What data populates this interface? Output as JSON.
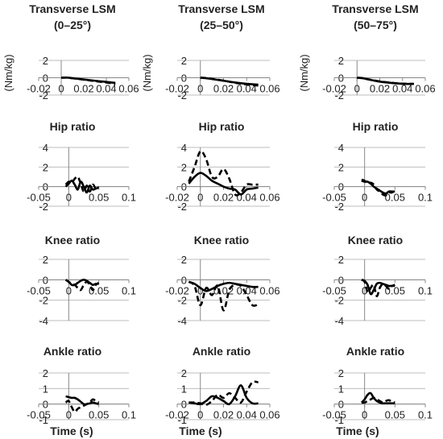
{
  "chart_data": [
    {
      "type": "line",
      "title": [
        "Transverse LSM",
        "(0–25°)"
      ],
      "ylabel": "(Nm/kg)",
      "xlim": [
        -0.02,
        0.06
      ],
      "ylim": [
        -2,
        2
      ],
      "xticks": [
        -0.02,
        0,
        0.02,
        0.04,
        0.06
      ],
      "yticks": [
        -2,
        0,
        2
      ],
      "xticklabels": [
        "-0.02",
        "0",
        "0.02",
        "0.04",
        "0.06"
      ],
      "yticklabels": [
        "-2",
        "0",
        "2"
      ],
      "series": [
        {
          "x": [
            0,
            0.005,
            0.01,
            0.02,
            0.03,
            0.04,
            0.048
          ],
          "values": [
            0,
            0.02,
            -0.05,
            -0.2,
            -0.35,
            -0.48,
            -0.6
          ],
          "style": "solid"
        },
        {
          "x": [
            0,
            0.005,
            0.01,
            0.02,
            0.03,
            0.04,
            0.048
          ],
          "values": [
            0,
            0.02,
            -0.06,
            -0.22,
            -0.4,
            -0.55,
            -0.72
          ],
          "style": "dashed"
        }
      ]
    },
    {
      "type": "line",
      "title": [
        "Transverse LSM",
        "(25–50°)"
      ],
      "ylabel": "(Nm/kg)",
      "xlim": [
        -0.02,
        0.06
      ],
      "ylim": [
        -2,
        2
      ],
      "xticks": [
        -0.02,
        0,
        0.02,
        0.04,
        0.06
      ],
      "yticks": [
        -2,
        0,
        2
      ],
      "xticklabels": [
        "-0.02",
        "0",
        "0.02",
        "0.04",
        "0.06"
      ],
      "yticklabels": [
        "-2",
        "0",
        "2"
      ],
      "series": [
        {
          "x": [
            0,
            0.005,
            0.01,
            0.02,
            0.03,
            0.04,
            0.05
          ],
          "values": [
            0,
            -0.05,
            -0.15,
            -0.35,
            -0.55,
            -0.7,
            -0.8
          ],
          "style": "solid"
        },
        {
          "x": [
            0,
            0.005,
            0.01,
            0.02,
            0.03,
            0.04,
            0.05
          ],
          "values": [
            0,
            -0.03,
            -0.12,
            -0.33,
            -0.58,
            -0.78,
            -0.9
          ],
          "style": "dashed"
        }
      ]
    },
    {
      "type": "line",
      "title": [
        "Transverse LSM",
        "(50–75°)"
      ],
      "ylabel": "(Nm/kg)",
      "xlim": [
        -0.02,
        0.06
      ],
      "ylim": [
        -2,
        2
      ],
      "xticks": [
        -0.02,
        0,
        0.02,
        0.04,
        0.06
      ],
      "yticks": [
        -2,
        0,
        2
      ],
      "xticklabels": [
        "-0.02",
        "0",
        "0.02",
        "0.04",
        "0.06"
      ],
      "yticklabels": [
        "-2",
        "0",
        "2"
      ],
      "series": [
        {
          "x": [
            0,
            0.005,
            0.01,
            0.02,
            0.03,
            0.04,
            0.05
          ],
          "values": [
            0,
            -0.05,
            -0.2,
            -0.45,
            -0.6,
            -0.7,
            -0.72
          ],
          "style": "solid"
        },
        {
          "x": [
            0,
            0.005,
            0.01,
            0.02,
            0.03,
            0.04,
            0.05
          ],
          "values": [
            0,
            -0.04,
            -0.18,
            -0.42,
            -0.58,
            -0.68,
            -0.7
          ],
          "style": "dashed"
        }
      ]
    },
    {
      "type": "line",
      "title": [
        "Hip ratio"
      ],
      "xlim": [
        -0.05,
        0.1
      ],
      "ylim": [
        -2,
        4
      ],
      "xticks": [
        -0.05,
        0,
        0.05,
        0.1
      ],
      "yticks": [
        -2,
        0,
        2,
        4
      ],
      "xticklabels": [
        "-0.05",
        "0",
        "0.05",
        "0.1"
      ],
      "yticklabels": [
        "-2",
        "0",
        "2",
        "4"
      ],
      "series": [
        {
          "x": [
            -0.005,
            0,
            0.005,
            0.01,
            0.015,
            0.02,
            0.025,
            0.03,
            0.035,
            0.04,
            0.045,
            0.05
          ],
          "values": [
            0,
            0.3,
            0.6,
            0.2,
            -0.3,
            0.5,
            0,
            -0.6,
            0.1,
            -0.3,
            -0.2,
            -0.1
          ],
          "style": "solid"
        },
        {
          "x": [
            -0.005,
            0,
            0.005,
            0.01,
            0.015,
            0.02,
            0.025,
            0.03,
            0.035,
            0.04,
            0.045,
            0.05
          ],
          "values": [
            0.2,
            0.5,
            0.4,
            0.8,
            1.0,
            0.3,
            -0.5,
            0.1,
            -0.5,
            0.2,
            -0.2,
            0
          ],
          "style": "dashed"
        }
      ]
    },
    {
      "type": "line",
      "title": [
        "Hip ratio"
      ],
      "xlim": [
        -0.02,
        0.06
      ],
      "ylim": [
        -2,
        4
      ],
      "xticks": [
        -0.02,
        0,
        0.02,
        0.04,
        0.06
      ],
      "yticks": [
        -2,
        0,
        2,
        4
      ],
      "xticklabels": [
        "-0.02",
        "0",
        "0.02",
        "0.04",
        "0.06"
      ],
      "yticklabels": [
        "-2",
        "0",
        "2",
        "4"
      ],
      "series": [
        {
          "x": [
            -0.01,
            -0.005,
            0,
            0.005,
            0.01,
            0.015,
            0.02,
            0.025,
            0.03,
            0.035,
            0.04,
            0.045,
            0.05
          ],
          "values": [
            0.3,
            1.0,
            1.4,
            1.1,
            0.6,
            0.3,
            0.0,
            -0.2,
            -0.3,
            -0.8,
            -0.3,
            -0.2,
            -0.1
          ],
          "style": "solid"
        },
        {
          "x": [
            -0.01,
            -0.005,
            0,
            0.005,
            0.01,
            0.015,
            0.02,
            0.025,
            0.03,
            0.035,
            0.04,
            0.045,
            0.05
          ],
          "values": [
            0.5,
            2.0,
            3.6,
            2.8,
            1.0,
            1.0,
            1.8,
            0.8,
            -0.8,
            -0.6,
            0.2,
            0.2,
            0.2
          ],
          "style": "dashed"
        }
      ]
    },
    {
      "type": "line",
      "title": [
        "Hip ratio"
      ],
      "xlim": [
        -0.05,
        0.1
      ],
      "ylim": [
        -2,
        4
      ],
      "xticks": [
        -0.05,
        0,
        0.05,
        0.1
      ],
      "yticks": [
        -2,
        0,
        2,
        4
      ],
      "xticklabels": [
        "-0.05",
        "0",
        "0.05",
        "0.1"
      ],
      "yticklabels": [
        "-2",
        "0",
        "2",
        "4"
      ],
      "series": [
        {
          "x": [
            -0.005,
            0,
            0.005,
            0.01,
            0.015,
            0.02,
            0.025,
            0.03,
            0.035,
            0.04,
            0.045,
            0.05
          ],
          "values": [
            0.6,
            0.5,
            0.5,
            0.3,
            0,
            -0.2,
            -0.4,
            -0.6,
            -0.7,
            -0.5,
            -0.5,
            -0.5
          ],
          "style": "solid"
        },
        {
          "x": [
            -0.005,
            0,
            0.005,
            0.01,
            0.015,
            0.02,
            0.025,
            0.03,
            0.035,
            0.04,
            0.045,
            0.05
          ],
          "values": [
            0.7,
            0.6,
            0.3,
            0.4,
            0.2,
            -0.3,
            -0.5,
            -0.8,
            -0.9,
            -0.6,
            -0.6,
            -0.4
          ],
          "style": "dashed"
        }
      ]
    },
    {
      "type": "line",
      "title": [
        "Knee ratio"
      ],
      "xlim": [
        -0.05,
        0.1
      ],
      "ylim": [
        -4,
        2
      ],
      "xticks": [
        -0.05,
        0,
        0.05,
        0.1
      ],
      "yticks": [
        -4,
        -2,
        0,
        2
      ],
      "xticklabels": [
        "-0.05",
        "0",
        "0.05",
        "0.1"
      ],
      "yticklabels": [
        "-4",
        "-2",
        "0",
        "2"
      ],
      "series": [
        {
          "x": [
            -0.005,
            0,
            0.005,
            0.01,
            0.015,
            0.02,
            0.025,
            0.03,
            0.035,
            0.04,
            0.045,
            0.05
          ],
          "values": [
            0,
            -0.2,
            -0.5,
            -0.5,
            -0.3,
            -0.1,
            0,
            -0.1,
            -0.3,
            -0.5,
            -0.4,
            -0.4
          ],
          "style": "solid"
        },
        {
          "x": [
            -0.005,
            0,
            0.005,
            0.01,
            0.015,
            0.02,
            0.025,
            0.03,
            0.035,
            0.04,
            0.045,
            0.05
          ],
          "values": [
            0,
            -0.2,
            -0.4,
            -0.5,
            -0.8,
            -1.0,
            -0.5,
            -0.2,
            -0.5,
            -1.0,
            -0.5,
            -0.3
          ],
          "style": "dashed"
        }
      ]
    },
    {
      "type": "line",
      "title": [
        "Knee ratio"
      ],
      "xlim": [
        -0.02,
        0.06
      ],
      "ylim": [
        -4,
        2
      ],
      "xticks": [
        -0.02,
        0,
        0.02,
        0.04,
        0.06
      ],
      "yticks": [
        -4,
        -2,
        0,
        2
      ],
      "xticklabels": [
        "-0.02",
        "0",
        "0.02",
        "0.04",
        "0.06"
      ],
      "yticklabels": [
        "-4",
        "-2",
        "0",
        "2"
      ],
      "series": [
        {
          "x": [
            -0.01,
            -0.005,
            0,
            0.005,
            0.01,
            0.015,
            0.02,
            0.025,
            0.03,
            0.035,
            0.04,
            0.045,
            0.05
          ],
          "values": [
            -0.2,
            -0.4,
            -0.8,
            -1.1,
            -0.9,
            -0.6,
            -0.4,
            -0.3,
            -0.4,
            -0.5,
            -0.6,
            -0.7,
            -0.7
          ],
          "style": "solid"
        },
        {
          "x": [
            -0.01,
            -0.005,
            0,
            0.005,
            0.01,
            0.015,
            0.02,
            0.025,
            0.03,
            0.035,
            0.04,
            0.045,
            0.05
          ],
          "values": [
            -0.2,
            -0.6,
            -2.5,
            -0.8,
            -1.5,
            -0.6,
            -3.0,
            -1.0,
            -0.5,
            -0.6,
            -1.5,
            -2.5,
            -2.4
          ],
          "style": "dashed"
        }
      ]
    },
    {
      "type": "line",
      "title": [
        "Knee ratio"
      ],
      "xlim": [
        -0.05,
        0.1
      ],
      "ylim": [
        -4,
        2
      ],
      "xticks": [
        -0.05,
        0,
        0.05,
        0.1
      ],
      "yticks": [
        -4,
        -2,
        0,
        2
      ],
      "xticklabels": [
        "-0.05",
        "0",
        "0.05",
        "0.1"
      ],
      "yticklabels": [
        "-4",
        "-2",
        "0",
        "2"
      ],
      "series": [
        {
          "x": [
            -0.005,
            0,
            0.005,
            0.01,
            0.015,
            0.02,
            0.025,
            0.03,
            0.035,
            0.04,
            0.045,
            0.05
          ],
          "values": [
            0,
            -0.1,
            -0.5,
            -1.4,
            -1.0,
            -0.4,
            -0.3,
            -0.4,
            -0.5,
            -0.6,
            -0.6,
            -0.6
          ],
          "style": "solid"
        },
        {
          "x": [
            -0.005,
            0,
            0.005,
            0.01,
            0.015,
            0.02,
            0.025,
            0.03,
            0.035,
            0.04,
            0.045,
            0.05
          ],
          "values": [
            0,
            -0.2,
            -1.2,
            -0.8,
            -0.5,
            -1.6,
            -0.8,
            -0.4,
            -0.6,
            -0.9,
            -0.6,
            -0.5
          ],
          "style": "dashed"
        }
      ]
    },
    {
      "type": "line",
      "title": [
        "Ankle ratio"
      ],
      "xlim": [
        -0.05,
        0.1
      ],
      "ylim": [
        -1,
        2
      ],
      "xticks": [
        -0.05,
        0,
        0.05,
        0.1
      ],
      "yticks": [
        -1,
        0,
        1,
        2
      ],
      "xticklabels": [
        "-0.05",
        "0",
        "0.05",
        "0.1"
      ],
      "yticklabels": [
        "-1",
        "0",
        "1",
        "2"
      ],
      "series": [
        {
          "x": [
            -0.005,
            0,
            0.005,
            0.01,
            0.015,
            0.02,
            0.025,
            0.03,
            0.035,
            0.04,
            0.045,
            0.05
          ],
          "values": [
            0.5,
            0.45,
            0.4,
            0.4,
            0.3,
            0.15,
            0,
            0,
            0.05,
            0.1,
            0.05,
            0
          ],
          "style": "solid"
        },
        {
          "x": [
            -0.005,
            0,
            0.005,
            0.01,
            0.015,
            0.02,
            0.025,
            0.03,
            0.035,
            0.04,
            0.045,
            0.05
          ],
          "values": [
            0.1,
            0.2,
            -0.2,
            -0.5,
            -0.3,
            -0.2,
            -0.1,
            0,
            0.1,
            0.3,
            0.2,
            0.1
          ],
          "style": "dashed"
        }
      ]
    },
    {
      "type": "line",
      "title": [
        "Ankle ratio"
      ],
      "xlim": [
        -0.02,
        0.06
      ],
      "ylim": [
        -1,
        2
      ],
      "xticks": [
        -0.02,
        0,
        0.02,
        0.04,
        0.06
      ],
      "yticks": [
        -1,
        0,
        1,
        2
      ],
      "xticklabels": [
        "-0.02",
        "0",
        "0.02",
        "0.04",
        "0.06"
      ],
      "yticklabels": [
        "-1",
        "0",
        "1",
        "2"
      ],
      "series": [
        {
          "x": [
            -0.01,
            -0.005,
            0,
            0.005,
            0.01,
            0.015,
            0.02,
            0.025,
            0.03,
            0.035,
            0.04,
            0.045,
            0.05
          ],
          "values": [
            0.1,
            0.05,
            0,
            0.2,
            0.5,
            0.4,
            0.2,
            0,
            0.5,
            1.2,
            0.4,
            0.05,
            0.05
          ],
          "style": "solid"
        },
        {
          "x": [
            -0.01,
            -0.005,
            0,
            0.005,
            0.01,
            0.015,
            0.02,
            0.025,
            0.03,
            0.035,
            0.04,
            0.045,
            0.05
          ],
          "values": [
            0.1,
            0.1,
            0.05,
            -0.05,
            0.2,
            0.6,
            0.4,
            0.7,
            0.4,
            0.1,
            0.8,
            1.4,
            1.4
          ],
          "style": "dashed"
        }
      ]
    },
    {
      "type": "line",
      "title": [
        "Ankle ratio"
      ],
      "xlim": [
        -0.05,
        0.1
      ],
      "ylim": [
        -1,
        2
      ],
      "xticks": [
        -0.05,
        0,
        0.05,
        0.1
      ],
      "yticks": [
        -1,
        0,
        1,
        2
      ],
      "xticklabels": [
        "-0.05",
        "0",
        "0.05",
        "0.1"
      ],
      "yticklabels": [
        "-1",
        "0",
        "1",
        "2"
      ],
      "series": [
        {
          "x": [
            -0.005,
            0,
            0.005,
            0.01,
            0.015,
            0.02,
            0.025,
            0.03,
            0.035,
            0.04,
            0.045,
            0.05
          ],
          "values": [
            0.1,
            0.3,
            0.6,
            0.7,
            0.4,
            0.2,
            0.1,
            0.05,
            0.05,
            0.05,
            0.05,
            0.05
          ],
          "style": "solid"
        },
        {
          "x": [
            -0.005,
            0,
            0.005,
            0.01,
            0.015,
            0.02,
            0.025,
            0.03,
            0.035,
            0.04,
            0.045,
            0.05
          ],
          "values": [
            0.1,
            0.1,
            0.2,
            0.3,
            0.4,
            0.3,
            0.2,
            0.1,
            0.2,
            0.25,
            0.15,
            0.1
          ],
          "style": "dashed"
        }
      ]
    }
  ],
  "xlabel": "Time (s)"
}
